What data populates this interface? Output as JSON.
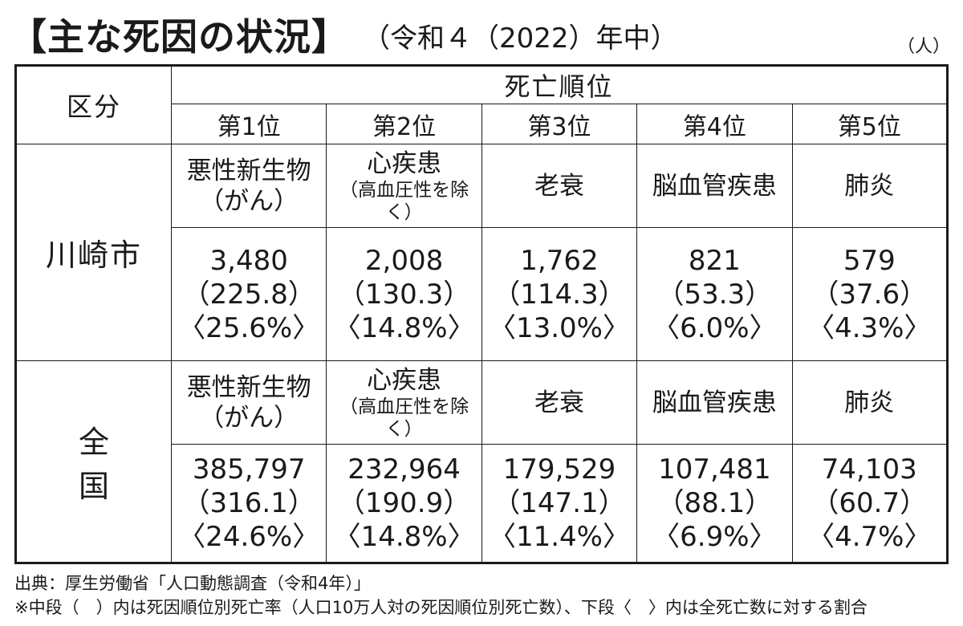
{
  "title": "【主な死因の状況】",
  "subtitle": "（令和４（2022）年中）",
  "unit": "（人）",
  "table": {
    "label_header": "区分",
    "group_header": "死亡順位",
    "ranks": [
      "第1位",
      "第2位",
      "第3位",
      "第4位",
      "第5位"
    ],
    "regions": [
      {
        "name": "川崎市",
        "causes": [
          {
            "main": "悪性新生物",
            "sub": "（がん）"
          },
          {
            "main": "心疾患",
            "sub": "（高血圧性を除く）"
          },
          {
            "main": "老衰",
            "sub": ""
          },
          {
            "main": "脳血管疾患",
            "sub": ""
          },
          {
            "main": "肺炎",
            "sub": ""
          }
        ],
        "values": [
          {
            "deaths": "3,480",
            "rate": "（225.8）",
            "share": "〈25.6%〉"
          },
          {
            "deaths": "2,008",
            "rate": "（130.3）",
            "share": "〈14.8%〉"
          },
          {
            "deaths": "1,762",
            "rate": "（114.3）",
            "share": "〈13.0%〉"
          },
          {
            "deaths": "821",
            "rate": "（53.3）",
            "share": "〈6.0%〉"
          },
          {
            "deaths": "579",
            "rate": "（37.6）",
            "share": "〈4.3%〉"
          }
        ]
      },
      {
        "name": "全国",
        "causes": [
          {
            "main": "悪性新生物",
            "sub": "（がん）"
          },
          {
            "main": "心疾患",
            "sub": "（高血圧性を除く）"
          },
          {
            "main": "老衰",
            "sub": ""
          },
          {
            "main": "脳血管疾患",
            "sub": ""
          },
          {
            "main": "肺炎",
            "sub": ""
          }
        ],
        "values": [
          {
            "deaths": "385,797",
            "rate": "（316.1）",
            "share": "〈24.6%〉"
          },
          {
            "deaths": "232,964",
            "rate": "（190.9）",
            "share": "〈14.8%〉"
          },
          {
            "deaths": "179,529",
            "rate": "（147.1）",
            "share": "〈11.4%〉"
          },
          {
            "deaths": "107,481",
            "rate": "（88.1）",
            "share": "〈6.9%〉"
          },
          {
            "deaths": "74,103",
            "rate": "（60.7）",
            "share": "〈4.7%〉"
          }
        ]
      }
    ]
  },
  "notes": {
    "source": "出典：厚生労働省「人口動態調査（令和4年）」",
    "footnote": "※中段（　）内は死因順位別死亡率（人口10万人対の死因順位別死亡数）、下段〈　〉内は全死亡数に対する割合"
  }
}
